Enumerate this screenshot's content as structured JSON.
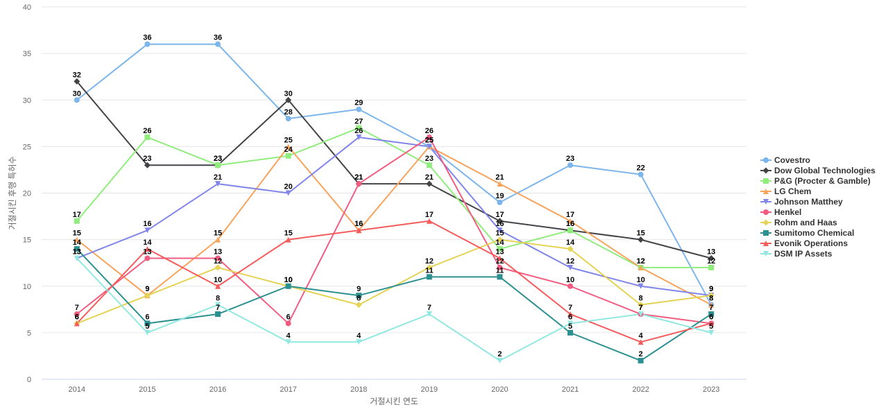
{
  "chart_data": {
    "type": "line",
    "title": "",
    "xlabel": "거절시킨 연도",
    "ylabel": "거절시킨 후행 특허수",
    "ylim": [
      0,
      40
    ],
    "yticks": [
      0,
      5,
      10,
      15,
      20,
      25,
      30,
      35,
      40
    ],
    "categories": [
      "2014",
      "2015",
      "2016",
      "2017",
      "2018",
      "2019",
      "2020",
      "2021",
      "2022",
      "2023"
    ],
    "grid": "horizontal",
    "legend_position": "right",
    "series": [
      {
        "name": "Covestro",
        "color": "#7cb5ec",
        "marker": "circle",
        "values": [
          30,
          36,
          36,
          28,
          29,
          25,
          19,
          23,
          22,
          8
        ]
      },
      {
        "name": "Dow Global Technologies",
        "color": "#434348",
        "marker": "diamond",
        "values": [
          32,
          23,
          23,
          30,
          21,
          21,
          17,
          16,
          15,
          13
        ]
      },
      {
        "name": "P&G (Procter & Gamble)",
        "color": "#90ed7d",
        "marker": "square",
        "values": [
          17,
          26,
          23,
          24,
          27,
          23,
          14,
          16,
          12,
          12
        ]
      },
      {
        "name": "LG Chem",
        "color": "#f7a35c",
        "marker": "triangle",
        "values": [
          15,
          9,
          15,
          25,
          16,
          25,
          21,
          17,
          12,
          8
        ]
      },
      {
        "name": "Johnson Matthey",
        "color": "#8085e9",
        "marker": "triangle-down",
        "values": [
          13,
          16,
          21,
          20,
          26,
          25,
          16,
          12,
          10,
          9
        ]
      },
      {
        "name": "Henkel",
        "color": "#f15c80",
        "marker": "circle",
        "values": [
          7,
          13,
          13,
          6,
          21,
          26,
          12,
          10,
          7,
          6
        ]
      },
      {
        "name": "Rohm and Haas",
        "color": "#e4d354",
        "marker": "diamond",
        "values": [
          6,
          9,
          12,
          10,
          8,
          12,
          15,
          14,
          8,
          9
        ]
      },
      {
        "name": "Sumitomo Chemical",
        "color": "#2b908f",
        "marker": "square",
        "values": [
          14,
          6,
          7,
          10,
          9,
          11,
          11,
          5,
          2,
          7
        ]
      },
      {
        "name": "Evonik Operations",
        "color": "#f45b5b",
        "marker": "triangle",
        "values": [
          6,
          14,
          10,
          15,
          16,
          17,
          13,
          7,
          4,
          6
        ]
      },
      {
        "name": "DSM IP Assets",
        "color": "#91e8e1",
        "marker": "triangle-down",
        "values": [
          13,
          5,
          8,
          4,
          4,
          7,
          2,
          6,
          7,
          5
        ]
      }
    ]
  }
}
